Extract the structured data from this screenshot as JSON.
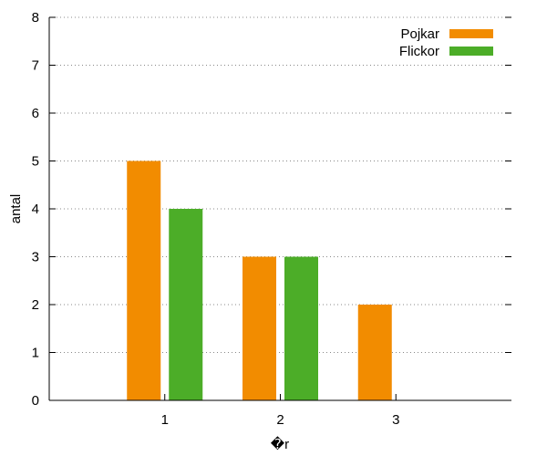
{
  "chart_data": {
    "type": "bar",
    "categories": [
      "1",
      "2",
      "3"
    ],
    "series": [
      {
        "name": "Pojkar",
        "values": [
          5,
          3,
          2
        ],
        "color": "#f28c00"
      },
      {
        "name": "Flickor",
        "values": [
          4,
          3,
          null
        ],
        "color": "#4cad28"
      }
    ],
    "xlabel": "�r",
    "ylabel": "antal",
    "ylim": [
      0,
      8
    ],
    "yticks": [
      "0",
      "1",
      "2",
      "3",
      "4",
      "5",
      "6",
      "7",
      "8"
    ],
    "grid": true,
    "legend_position": "top-right"
  }
}
